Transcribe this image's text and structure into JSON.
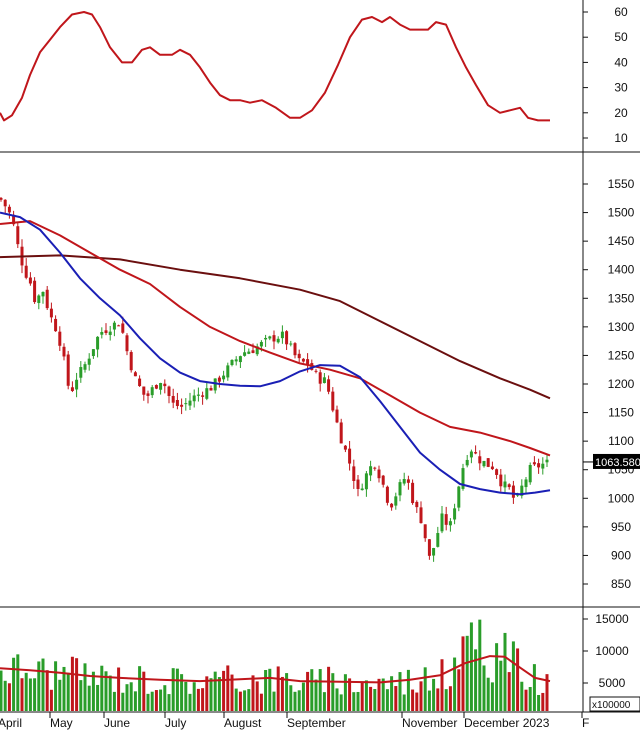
{
  "chart_data": [
    {
      "type": "line",
      "panel": "indicator",
      "ylim": [
        5,
        65
      ],
      "y_ticks": [
        10,
        20,
        30,
        40,
        50,
        60
      ],
      "line_color": "#c0161b",
      "grid": false,
      "points": [
        {
          "x": 0,
          "y": 20
        },
        {
          "x": 4,
          "y": 17
        },
        {
          "x": 12,
          "y": 19
        },
        {
          "x": 22,
          "y": 26
        },
        {
          "x": 30,
          "y": 35
        },
        {
          "x": 40,
          "y": 44
        },
        {
          "x": 50,
          "y": 49
        },
        {
          "x": 60,
          "y": 54
        },
        {
          "x": 72,
          "y": 59
        },
        {
          "x": 84,
          "y": 60
        },
        {
          "x": 92,
          "y": 59
        },
        {
          "x": 100,
          "y": 54
        },
        {
          "x": 110,
          "y": 46
        },
        {
          "x": 122,
          "y": 40
        },
        {
          "x": 132,
          "y": 40
        },
        {
          "x": 142,
          "y": 45
        },
        {
          "x": 150,
          "y": 46
        },
        {
          "x": 160,
          "y": 43
        },
        {
          "x": 172,
          "y": 43
        },
        {
          "x": 180,
          "y": 45
        },
        {
          "x": 190,
          "y": 43
        },
        {
          "x": 200,
          "y": 38
        },
        {
          "x": 210,
          "y": 32
        },
        {
          "x": 220,
          "y": 27
        },
        {
          "x": 230,
          "y": 25
        },
        {
          "x": 240,
          "y": 25
        },
        {
          "x": 250,
          "y": 24
        },
        {
          "x": 262,
          "y": 25
        },
        {
          "x": 276,
          "y": 22
        },
        {
          "x": 290,
          "y": 18
        },
        {
          "x": 300,
          "y": 18
        },
        {
          "x": 312,
          "y": 21
        },
        {
          "x": 325,
          "y": 28
        },
        {
          "x": 338,
          "y": 39
        },
        {
          "x": 350,
          "y": 50
        },
        {
          "x": 362,
          "y": 57
        },
        {
          "x": 372,
          "y": 58
        },
        {
          "x": 382,
          "y": 56
        },
        {
          "x": 390,
          "y": 58
        },
        {
          "x": 400,
          "y": 55
        },
        {
          "x": 410,
          "y": 53
        },
        {
          "x": 420,
          "y": 53
        },
        {
          "x": 428,
          "y": 53
        },
        {
          "x": 436,
          "y": 56
        },
        {
          "x": 446,
          "y": 55
        },
        {
          "x": 456,
          "y": 46
        },
        {
          "x": 466,
          "y": 38
        },
        {
          "x": 476,
          "y": 31
        },
        {
          "x": 488,
          "y": 23
        },
        {
          "x": 500,
          "y": 20
        },
        {
          "x": 510,
          "y": 21
        },
        {
          "x": 520,
          "y": 22
        },
        {
          "x": 528,
          "y": 18
        },
        {
          "x": 538,
          "y": 17
        },
        {
          "x": 550,
          "y": 17
        }
      ]
    },
    {
      "type": "candlestick",
      "panel": "price",
      "ylim": [
        810,
        1580
      ],
      "y_ticks": [
        850,
        900,
        950,
        1000,
        1050,
        1100,
        1150,
        1200,
        1250,
        1300,
        1350,
        1400,
        1450,
        1500,
        1550
      ],
      "last_price_label": "1063.580",
      "last_price": 1063.58,
      "grid": false,
      "colors": {
        "up": "#2a9d2a",
        "down": "#c0161b",
        "ma_fast": "#1a1fb5",
        "ma_mid": "#c0161b",
        "ma_slow": "#6b0f0f"
      },
      "price_path": [
        {
          "x": 0,
          "y": 1525
        },
        {
          "x": 6,
          "y": 1510
        },
        {
          "x": 12,
          "y": 1490
        },
        {
          "x": 18,
          "y": 1440
        },
        {
          "x": 24,
          "y": 1400
        },
        {
          "x": 30,
          "y": 1380
        },
        {
          "x": 36,
          "y": 1340
        },
        {
          "x": 42,
          "y": 1370
        },
        {
          "x": 50,
          "y": 1320
        },
        {
          "x": 58,
          "y": 1290
        },
        {
          "x": 64,
          "y": 1240
        },
        {
          "x": 70,
          "y": 1180
        },
        {
          "x": 76,
          "y": 1210
        },
        {
          "x": 84,
          "y": 1230
        },
        {
          "x": 92,
          "y": 1260
        },
        {
          "x": 100,
          "y": 1290
        },
        {
          "x": 110,
          "y": 1300
        },
        {
          "x": 120,
          "y": 1310
        },
        {
          "x": 128,
          "y": 1250
        },
        {
          "x": 136,
          "y": 1205
        },
        {
          "x": 146,
          "y": 1175
        },
        {
          "x": 154,
          "y": 1195
        },
        {
          "x": 162,
          "y": 1210
        },
        {
          "x": 172,
          "y": 1165
        },
        {
          "x": 182,
          "y": 1160
        },
        {
          "x": 192,
          "y": 1175
        },
        {
          "x": 202,
          "y": 1185
        },
        {
          "x": 212,
          "y": 1195
        },
        {
          "x": 222,
          "y": 1215
        },
        {
          "x": 232,
          "y": 1235
        },
        {
          "x": 242,
          "y": 1255
        },
        {
          "x": 252,
          "y": 1260
        },
        {
          "x": 262,
          "y": 1270
        },
        {
          "x": 272,
          "y": 1280
        },
        {
          "x": 282,
          "y": 1285
        },
        {
          "x": 290,
          "y": 1265
        },
        {
          "x": 298,
          "y": 1240
        },
        {
          "x": 308,
          "y": 1235
        },
        {
          "x": 318,
          "y": 1210
        },
        {
          "x": 326,
          "y": 1205
        },
        {
          "x": 334,
          "y": 1150
        },
        {
          "x": 342,
          "y": 1100
        },
        {
          "x": 350,
          "y": 1060
        },
        {
          "x": 358,
          "y": 1010
        },
        {
          "x": 366,
          "y": 1040
        },
        {
          "x": 374,
          "y": 1065
        },
        {
          "x": 382,
          "y": 1030
        },
        {
          "x": 390,
          "y": 985
        },
        {
          "x": 398,
          "y": 1015
        },
        {
          "x": 406,
          "y": 1040
        },
        {
          "x": 414,
          "y": 990
        },
        {
          "x": 422,
          "y": 960
        },
        {
          "x": 430,
          "y": 890
        },
        {
          "x": 436,
          "y": 930
        },
        {
          "x": 442,
          "y": 965
        },
        {
          "x": 450,
          "y": 950
        },
        {
          "x": 456,
          "y": 1000
        },
        {
          "x": 462,
          "y": 1050
        },
        {
          "x": 470,
          "y": 1090
        },
        {
          "x": 478,
          "y": 1070
        },
        {
          "x": 486,
          "y": 1060
        },
        {
          "x": 494,
          "y": 1055
        },
        {
          "x": 502,
          "y": 1025
        },
        {
          "x": 510,
          "y": 1015
        },
        {
          "x": 516,
          "y": 990
        },
        {
          "x": 522,
          "y": 1020
        },
        {
          "x": 530,
          "y": 1050
        },
        {
          "x": 540,
          "y": 1058
        },
        {
          "x": 550,
          "y": 1063
        }
      ],
      "ma_fast": [
        {
          "x": 0,
          "y": 1500
        },
        {
          "x": 20,
          "y": 1492
        },
        {
          "x": 40,
          "y": 1470
        },
        {
          "x": 60,
          "y": 1430
        },
        {
          "x": 80,
          "y": 1385
        },
        {
          "x": 100,
          "y": 1350
        },
        {
          "x": 120,
          "y": 1320
        },
        {
          "x": 140,
          "y": 1280
        },
        {
          "x": 160,
          "y": 1245
        },
        {
          "x": 180,
          "y": 1220
        },
        {
          "x": 200,
          "y": 1205
        },
        {
          "x": 220,
          "y": 1200
        },
        {
          "x": 240,
          "y": 1197
        },
        {
          "x": 260,
          "y": 1196
        },
        {
          "x": 280,
          "y": 1205
        },
        {
          "x": 300,
          "y": 1222
        },
        {
          "x": 320,
          "y": 1233
        },
        {
          "x": 340,
          "y": 1232
        },
        {
          "x": 360,
          "y": 1212
        },
        {
          "x": 380,
          "y": 1170
        },
        {
          "x": 400,
          "y": 1125
        },
        {
          "x": 420,
          "y": 1080
        },
        {
          "x": 440,
          "y": 1050
        },
        {
          "x": 460,
          "y": 1025
        },
        {
          "x": 480,
          "y": 1016
        },
        {
          "x": 500,
          "y": 1010
        },
        {
          "x": 520,
          "y": 1007
        },
        {
          "x": 535,
          "y": 1010
        },
        {
          "x": 550,
          "y": 1014
        }
      ],
      "ma_mid": [
        {
          "x": 0,
          "y": 1480
        },
        {
          "x": 30,
          "y": 1485
        },
        {
          "x": 60,
          "y": 1460
        },
        {
          "x": 90,
          "y": 1430
        },
        {
          "x": 120,
          "y": 1400
        },
        {
          "x": 150,
          "y": 1375
        },
        {
          "x": 180,
          "y": 1335
        },
        {
          "x": 210,
          "y": 1300
        },
        {
          "x": 240,
          "y": 1275
        },
        {
          "x": 270,
          "y": 1255
        },
        {
          "x": 300,
          "y": 1236
        },
        {
          "x": 330,
          "y": 1225
        },
        {
          "x": 360,
          "y": 1210
        },
        {
          "x": 390,
          "y": 1180
        },
        {
          "x": 420,
          "y": 1150
        },
        {
          "x": 450,
          "y": 1125
        },
        {
          "x": 480,
          "y": 1115
        },
        {
          "x": 510,
          "y": 1100
        },
        {
          "x": 530,
          "y": 1088
        },
        {
          "x": 550,
          "y": 1075
        }
      ],
      "ma_slow": [
        {
          "x": 0,
          "y": 1422
        },
        {
          "x": 60,
          "y": 1425
        },
        {
          "x": 120,
          "y": 1418
        },
        {
          "x": 180,
          "y": 1400
        },
        {
          "x": 240,
          "y": 1385
        },
        {
          "x": 300,
          "y": 1365
        },
        {
          "x": 340,
          "y": 1345
        },
        {
          "x": 380,
          "y": 1310
        },
        {
          "x": 420,
          "y": 1275
        },
        {
          "x": 460,
          "y": 1240
        },
        {
          "x": 500,
          "y": 1210
        },
        {
          "x": 530,
          "y": 1190
        },
        {
          "x": 550,
          "y": 1175
        }
      ]
    },
    {
      "type": "bar",
      "panel": "volume",
      "ylim": [
        0,
        16000
      ],
      "y_ticks": [
        5000,
        10000,
        15000
      ],
      "y_unit_label": "x100000",
      "grid": false,
      "colors": {
        "up": "#2a9d2a",
        "down": "#c0161b",
        "ma": "#c0161b"
      },
      "volume_ma": [
        {
          "x": 0,
          "y": 7300
        },
        {
          "x": 30,
          "y": 7000
        },
        {
          "x": 60,
          "y": 6600
        },
        {
          "x": 90,
          "y": 6100
        },
        {
          "x": 120,
          "y": 5800
        },
        {
          "x": 160,
          "y": 5500
        },
        {
          "x": 200,
          "y": 5300
        },
        {
          "x": 240,
          "y": 5600
        },
        {
          "x": 270,
          "y": 5800
        },
        {
          "x": 300,
          "y": 5300
        },
        {
          "x": 340,
          "y": 5200
        },
        {
          "x": 380,
          "y": 5100
        },
        {
          "x": 410,
          "y": 5500
        },
        {
          "x": 440,
          "y": 6200
        },
        {
          "x": 465,
          "y": 8100
        },
        {
          "x": 490,
          "y": 9200
        },
        {
          "x": 505,
          "y": 9100
        },
        {
          "x": 520,
          "y": 7400
        },
        {
          "x": 535,
          "y": 5800
        },
        {
          "x": 550,
          "y": 5300
        }
      ]
    }
  ],
  "x_axis": {
    "labels": [
      {
        "x": 0,
        "text": "April"
      },
      {
        "x": 52,
        "text": "May"
      },
      {
        "x": 106,
        "text": "June"
      },
      {
        "x": 167,
        "text": "July"
      },
      {
        "x": 226,
        "text": "August"
      },
      {
        "x": 289,
        "text": "September"
      },
      {
        "x": 404,
        "text": "November"
      },
      {
        "x": 466,
        "text": "December 2023"
      },
      {
        "x": 584,
        "text": "F"
      }
    ]
  }
}
